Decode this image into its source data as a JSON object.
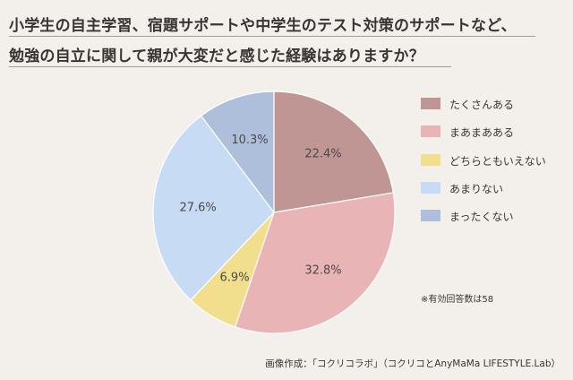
{
  "title_lines": [
    "小学生の自主学習、宿題サポートや中学生のテスト対策のサポートなど、",
    "勉強の自立に関して親が大変だと感じた経験はありますか？"
  ],
  "chart_data": {
    "type": "pie",
    "slices": [
      {
        "label": "たくさんある",
        "value": 22.4,
        "value_label": "22.4%",
        "color": "#bf9693"
      },
      {
        "label": "まあまあある",
        "value": 32.8,
        "value_label": "32.8%",
        "color": "#e8b4b6"
      },
      {
        "label": "どちらともいえない",
        "value": 6.9,
        "value_label": "6.9%",
        "color": "#f2df8e"
      },
      {
        "label": "あまりない",
        "value": 27.6,
        "value_label": "27.6%",
        "color": "#c7dbf5"
      },
      {
        "label": "まったくない",
        "value": 10.3,
        "value_label": "10.3%",
        "color": "#aebfdc"
      }
    ],
    "start": "12 o'clock",
    "direction": "clockwise",
    "legend_position": "right"
  },
  "note": "※有効回答数は58",
  "credit": "画像作成：「コクリコラボ」（コクリコとAnyMaMa LIFESTYLE.Lab）"
}
